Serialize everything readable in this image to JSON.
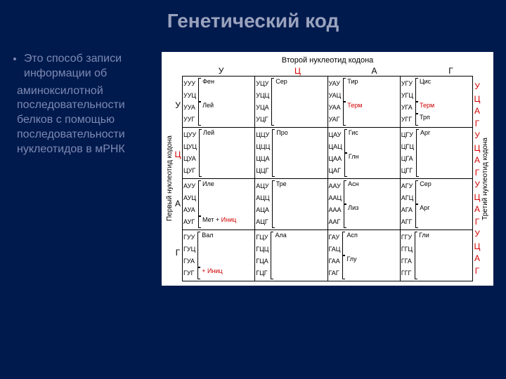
{
  "colors": {
    "bg": "#001a4d",
    "title": "#9aa2bd",
    "body_text": "#7e89b3",
    "table_bg": "#ffffff",
    "border": "#000000",
    "red": "#d00000"
  },
  "title": "Генетический код",
  "text": {
    "bullet": "Это способ записи информации об",
    "para": "аминоксилотной последовательности белков с помощью последовательности нуклеотидов в мРНК"
  },
  "table": {
    "top_title": "Второй нуклеотид кодона",
    "left_title": "Первый нуклеотид кодона",
    "right_title": "Третий нуклеотид кодона",
    "bases": [
      "У",
      "Ц",
      "А",
      "Г"
    ],
    "col_headers": [
      "У",
      "Ц",
      "А",
      "Г"
    ],
    "col_header_colors": {
      "Ц": "#d00000"
    },
    "row_label_colors": {
      "Ц": "#d00000"
    },
    "cells": [
      [
        {
          "codons": [
            "УУУ",
            "УУЦ",
            "УУА",
            "УУГ"
          ],
          "aa": [
            {
              "n": "Фен",
              "span": 2
            },
            {
              "n": "Лей",
              "span": 2
            }
          ]
        },
        {
          "codons": [
            "УЦУ",
            "УЦЦ",
            "УЦА",
            "УЦГ"
          ],
          "aa": [
            {
              "n": "Сер",
              "span": 4
            }
          ]
        },
        {
          "codons": [
            "УАУ",
            "УАЦ",
            "УАА",
            "УАГ"
          ],
          "aa": [
            {
              "n": "Тир",
              "span": 2
            },
            {
              "n": "Терм",
              "span": 2,
              "red": true
            }
          ]
        },
        {
          "codons": [
            "УГУ",
            "УГЦ",
            "УГА",
            "УГГ"
          ],
          "aa": [
            {
              "n": "Цис",
              "span": 2
            },
            {
              "n": "Терм",
              "span": 1,
              "red": true
            },
            {
              "n": "Трп",
              "span": 1
            }
          ]
        }
      ],
      [
        {
          "codons": [
            "ЦУУ",
            "ЦУЦ",
            "ЦУА",
            "ЦУГ"
          ],
          "aa": [
            {
              "n": "Лей",
              "span": 4
            }
          ]
        },
        {
          "codons": [
            "ЦЦУ",
            "ЦЦЦ",
            "ЦЦА",
            "ЦЦГ"
          ],
          "aa": [
            {
              "n": "Про",
              "span": 4
            }
          ]
        },
        {
          "codons": [
            "ЦАУ",
            "ЦАЦ",
            "ЦАА",
            "ЦАГ"
          ],
          "aa": [
            {
              "n": "Гис",
              "span": 2
            },
            {
              "n": "Глн",
              "span": 2
            }
          ]
        },
        {
          "codons": [
            "ЦГУ",
            "ЦГЦ",
            "ЦГА",
            "ЦГГ"
          ],
          "aa": [
            {
              "n": "Арг",
              "span": 4
            }
          ]
        }
      ],
      [
        {
          "codons": [
            "АУУ",
            "АУЦ",
            "АУА",
            "АУГ"
          ],
          "aa": [
            {
              "n": "Иле",
              "span": 3
            },
            {
              "n": "Мет + Иниц",
              "span": 1,
              "red_extra": true
            }
          ]
        },
        {
          "codons": [
            "АЦУ",
            "АЦЦ",
            "АЦА",
            "АЦГ"
          ],
          "aa": [
            {
              "n": "Тре",
              "span": 4
            }
          ]
        },
        {
          "codons": [
            "ААУ",
            "ААЦ",
            "ААА",
            "ААГ"
          ],
          "aa": [
            {
              "n": "Асн",
              "span": 2
            },
            {
              "n": "Лиз",
              "span": 2
            }
          ]
        },
        {
          "codons": [
            "АГУ",
            "АГЦ",
            "АГА",
            "АГГ"
          ],
          "aa": [
            {
              "n": "Сер",
              "span": 2
            },
            {
              "n": "Арг",
              "span": 2
            }
          ]
        }
      ],
      [
        {
          "codons": [
            "ГУУ",
            "ГУЦ",
            "ГУА",
            "ГУГ"
          ],
          "aa": [
            {
              "n": "Вал",
              "span": 3
            },
            {
              "n": "+ Иниц",
              "span": 1,
              "red": true
            }
          ]
        },
        {
          "codons": [
            "ГЦУ",
            "ГЦЦ",
            "ГЦА",
            "ГЦГ"
          ],
          "aa": [
            {
              "n": "Ала",
              "span": 4
            }
          ]
        },
        {
          "codons": [
            "ГАУ",
            "ГАЦ",
            "ГАА",
            "ГАГ"
          ],
          "aa": [
            {
              "n": "Асп",
              "span": 2
            },
            {
              "n": "Глу",
              "span": 2
            }
          ]
        },
        {
          "codons": [
            "ГГУ",
            "ГГЦ",
            "ГГА",
            "ГГГ"
          ],
          "aa": [
            {
              "n": "Гли",
              "span": 4
            }
          ]
        }
      ]
    ],
    "right_colors": [
      "#d00000",
      "#d00000",
      "#d00000",
      "#d00000"
    ]
  }
}
